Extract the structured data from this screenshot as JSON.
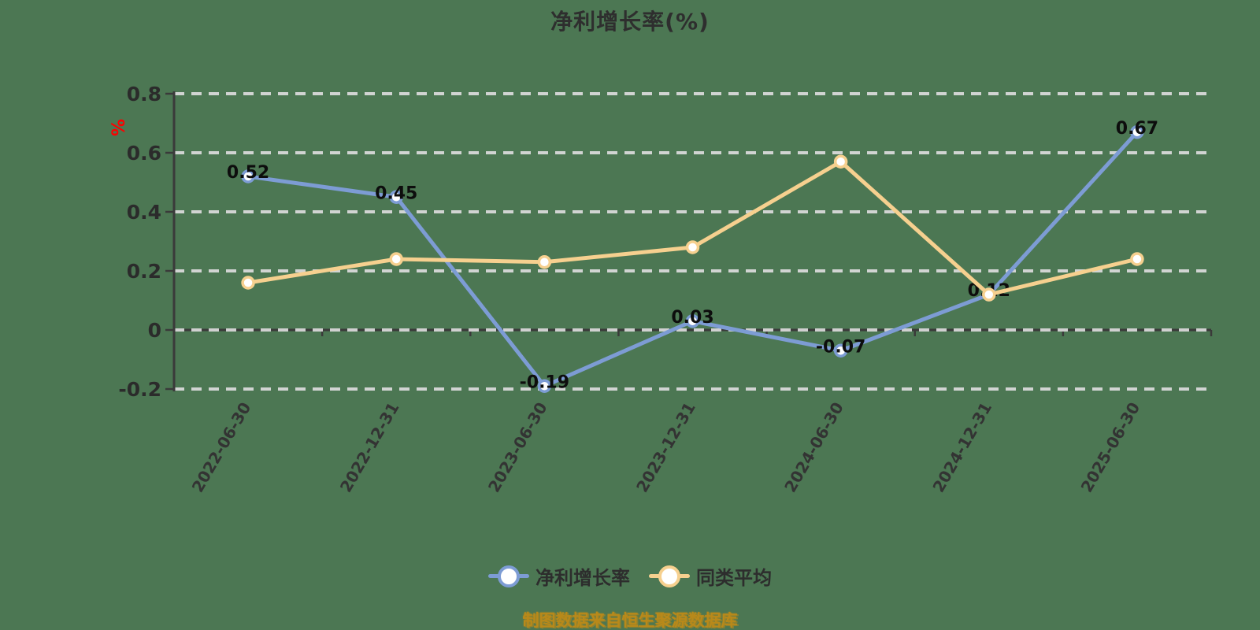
{
  "page": {
    "background": "#4c7753"
  },
  "chart_data": {
    "type": "line",
    "title": "净利增长率(%)",
    "y_axis_unit": "%",
    "categories": [
      "2022-06-30",
      "2022-12-31",
      "2023-06-30",
      "2023-12-31",
      "2024-06-30",
      "2024-12-31",
      "2025-06-30"
    ],
    "ylim": [
      -0.2,
      0.8
    ],
    "yticks": [
      0.8,
      0.6,
      0.4,
      0.2,
      0,
      -0.2
    ],
    "ytick_labels": [
      "0.8",
      "0.6",
      "0.4",
      "0.2",
      "0",
      "-0.2"
    ],
    "grid": "horizontal-dashed",
    "legend_position": "bottom-center",
    "series": [
      {
        "name": "净利增长率",
        "color": "#7d9cd4",
        "values": [
          0.52,
          0.45,
          -0.19,
          0.03,
          -0.07,
          0.12,
          0.67
        ],
        "point_labels": [
          "0.52",
          "0.45",
          "-0.19",
          "0.03",
          "-0.07",
          "0.12",
          "0.67"
        ],
        "show_labels": true
      },
      {
        "name": "同类平均",
        "color": "#f6d08f",
        "values": [
          0.16,
          0.24,
          0.23,
          0.28,
          0.57,
          0.12,
          0.24
        ],
        "point_labels": [],
        "show_labels": false
      }
    ],
    "footer": "制图数据来自恒生聚源数据库"
  },
  "colors": {
    "background": "#4c7753",
    "axis": "#3a3a3a",
    "grid": "#d9d9d9",
    "tick_label": "#2b2b2b",
    "x_label": "#333333",
    "data_label": "#0d0d0d",
    "unit_label": "#ff0000",
    "legend_text": "#2d2d2d",
    "title_text": "#2e2e2e",
    "footer_text": "#b8891a",
    "marker_fill": "#ffffff"
  }
}
